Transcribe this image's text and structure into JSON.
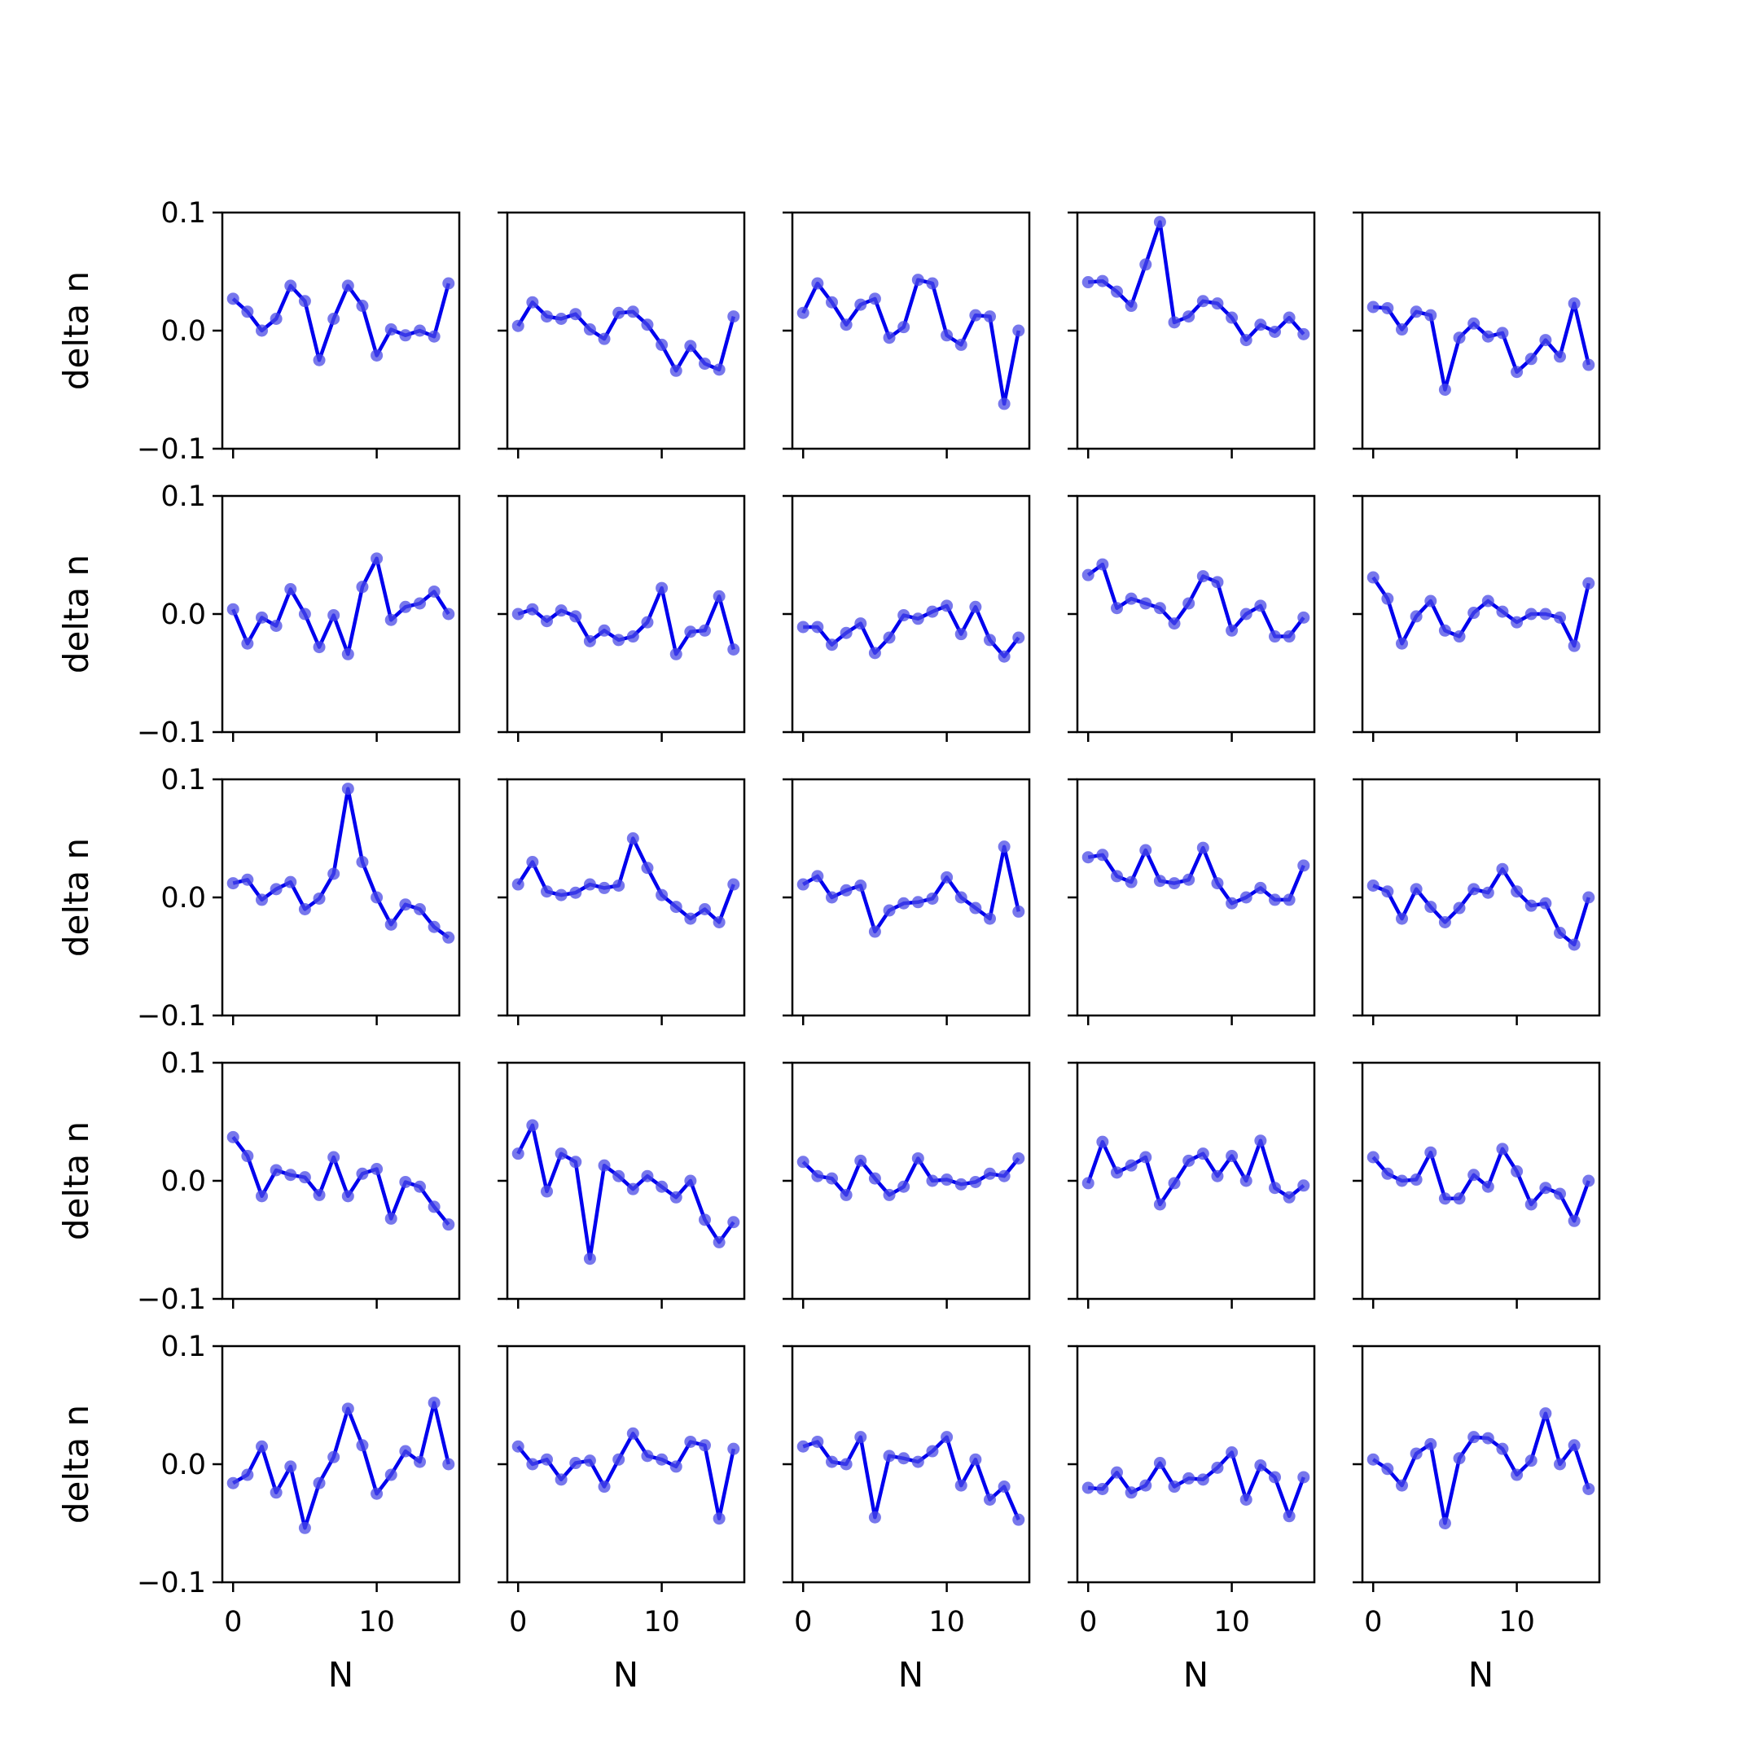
{
  "chart_data": {
    "type": "line",
    "layout": "5x5 grid of small multiples",
    "xlabel": "N",
    "ylabel": "delta n",
    "xlim": [
      -0.75,
      15.75
    ],
    "ylim": [
      -0.1,
      0.1
    ],
    "xticks": [
      0,
      10
    ],
    "xtick_labels": [
      "0",
      "10"
    ],
    "yticks": [
      -0.1,
      0.0,
      0.1
    ],
    "ytick_labels": [
      "−0.1",
      "0.0",
      "0.1"
    ],
    "line_color": "#0000ee",
    "marker_color": "#4a4ae6",
    "x": [
      0,
      1,
      2,
      3,
      4,
      5,
      6,
      7,
      8,
      9,
      10,
      11,
      12,
      13,
      14,
      15
    ],
    "panels": [
      [
        [
          0.027,
          0.016,
          0.0,
          0.01,
          0.038,
          0.025,
          -0.025,
          0.01,
          0.038,
          0.021,
          -0.021,
          0.001,
          -0.004,
          0.0,
          -0.005,
          0.04
        ],
        [
          0.004,
          0.024,
          0.012,
          0.01,
          0.014,
          0.001,
          -0.007,
          0.015,
          0.016,
          0.005,
          -0.012,
          -0.034,
          -0.013,
          -0.028,
          -0.033,
          0.012
        ],
        [
          0.015,
          0.04,
          0.024,
          0.005,
          0.022,
          0.027,
          -0.006,
          0.003,
          0.043,
          0.04,
          -0.004,
          -0.012,
          0.013,
          0.012,
          -0.062,
          0.0
        ],
        [
          0.041,
          0.042,
          0.033,
          0.021,
          0.056,
          0.092,
          0.007,
          0.012,
          0.025,
          0.023,
          0.011,
          -0.008,
          0.005,
          -0.001,
          0.011,
          -0.003
        ],
        [
          0.02,
          0.019,
          0.001,
          0.016,
          0.013,
          -0.05,
          -0.006,
          0.006,
          -0.005,
          -0.002,
          -0.035,
          -0.024,
          -0.008,
          -0.022,
          0.023,
          -0.029
        ]
      ],
      [
        [
          0.004,
          -0.025,
          -0.003,
          -0.01,
          0.021,
          0.0,
          -0.028,
          -0.001,
          -0.034,
          0.023,
          0.047,
          -0.005,
          0.006,
          0.009,
          0.019,
          0.0
        ],
        [
          0.0,
          0.004,
          -0.006,
          0.003,
          -0.002,
          -0.023,
          -0.014,
          -0.022,
          -0.019,
          -0.007,
          0.022,
          -0.034,
          -0.015,
          -0.014,
          0.015,
          -0.03
        ],
        [
          -0.011,
          -0.011,
          -0.026,
          -0.016,
          -0.008,
          -0.033,
          -0.02,
          -0.001,
          -0.004,
          0.002,
          0.007,
          -0.017,
          0.006,
          -0.022,
          -0.036,
          -0.02
        ],
        [
          0.033,
          0.042,
          0.005,
          0.013,
          0.009,
          0.005,
          -0.008,
          0.009,
          0.032,
          0.027,
          -0.014,
          0.0,
          0.007,
          -0.019,
          -0.019,
          -0.003
        ],
        [
          0.031,
          0.013,
          -0.025,
          -0.002,
          0.011,
          -0.014,
          -0.019,
          0.001,
          0.011,
          0.002,
          -0.007,
          0.0,
          0.0,
          -0.003,
          -0.027,
          0.026
        ]
      ],
      [
        [
          0.012,
          0.015,
          -0.002,
          0.007,
          0.013,
          -0.01,
          -0.001,
          0.02,
          0.092,
          0.03,
          0.0,
          -0.023,
          -0.006,
          -0.01,
          -0.025,
          -0.034
        ],
        [
          0.011,
          0.03,
          0.005,
          0.002,
          0.004,
          0.011,
          0.008,
          0.01,
          0.05,
          0.025,
          0.002,
          -0.008,
          -0.018,
          -0.01,
          -0.021,
          0.011
        ],
        [
          0.011,
          0.018,
          0.0,
          0.006,
          0.01,
          -0.029,
          -0.011,
          -0.005,
          -0.004,
          -0.001,
          0.017,
          0.0,
          -0.009,
          -0.018,
          0.043,
          -0.012
        ],
        [
          0.034,
          0.036,
          0.018,
          0.013,
          0.04,
          0.014,
          0.012,
          0.015,
          0.042,
          0.012,
          -0.005,
          0.0,
          0.008,
          -0.002,
          -0.002,
          0.027
        ],
        [
          0.01,
          0.005,
          -0.018,
          0.007,
          -0.008,
          -0.021,
          -0.009,
          0.007,
          0.004,
          0.024,
          0.005,
          -0.007,
          -0.005,
          -0.03,
          -0.04,
          0.0
        ]
      ],
      [
        [
          0.037,
          0.021,
          -0.013,
          0.009,
          0.005,
          0.003,
          -0.012,
          0.02,
          -0.013,
          0.006,
          0.01,
          -0.032,
          -0.001,
          -0.005,
          -0.022,
          -0.037
        ],
        [
          0.023,
          0.047,
          -0.009,
          0.023,
          0.016,
          -0.066,
          0.013,
          0.004,
          -0.007,
          0.004,
          -0.005,
          -0.014,
          0.0,
          -0.033,
          -0.052,
          -0.035
        ],
        [
          0.016,
          0.004,
          0.002,
          -0.012,
          0.017,
          0.002,
          -0.012,
          -0.005,
          0.019,
          0.0,
          0.001,
          -0.003,
          -0.001,
          0.006,
          0.004,
          0.019
        ],
        [
          -0.002,
          0.033,
          0.007,
          0.013,
          0.02,
          -0.02,
          -0.002,
          0.017,
          0.023,
          0.004,
          0.021,
          0.0,
          0.034,
          -0.006,
          -0.014,
          -0.004
        ],
        [
          0.02,
          0.006,
          0.0,
          0.001,
          0.024,
          -0.015,
          -0.015,
          0.005,
          -0.005,
          0.027,
          0.008,
          -0.02,
          -0.006,
          -0.011,
          -0.034,
          0.0
        ]
      ],
      [
        [
          -0.016,
          -0.009,
          0.015,
          -0.024,
          -0.002,
          -0.054,
          -0.016,
          0.006,
          0.047,
          0.016,
          -0.025,
          -0.009,
          0.011,
          0.002,
          0.052,
          0.0
        ],
        [
          0.015,
          0.0,
          0.004,
          -0.013,
          0.001,
          0.003,
          -0.019,
          0.004,
          0.026,
          0.007,
          0.004,
          -0.002,
          0.019,
          0.016,
          -0.046,
          0.013
        ],
        [
          0.015,
          0.019,
          0.002,
          0.0,
          0.023,
          -0.045,
          0.007,
          0.005,
          0.002,
          0.011,
          0.023,
          -0.018,
          0.004,
          -0.03,
          -0.019,
          -0.047
        ],
        [
          -0.02,
          -0.021,
          -0.007,
          -0.024,
          -0.018,
          0.001,
          -0.019,
          -0.012,
          -0.013,
          -0.003,
          0.01,
          -0.03,
          -0.001,
          -0.011,
          -0.044,
          -0.011
        ],
        [
          0.004,
          -0.004,
          -0.018,
          0.009,
          0.017,
          -0.05,
          0.005,
          0.023,
          0.022,
          0.013,
          -0.009,
          0.003,
          0.043,
          0.0,
          0.016,
          -0.021
        ]
      ]
    ]
  }
}
